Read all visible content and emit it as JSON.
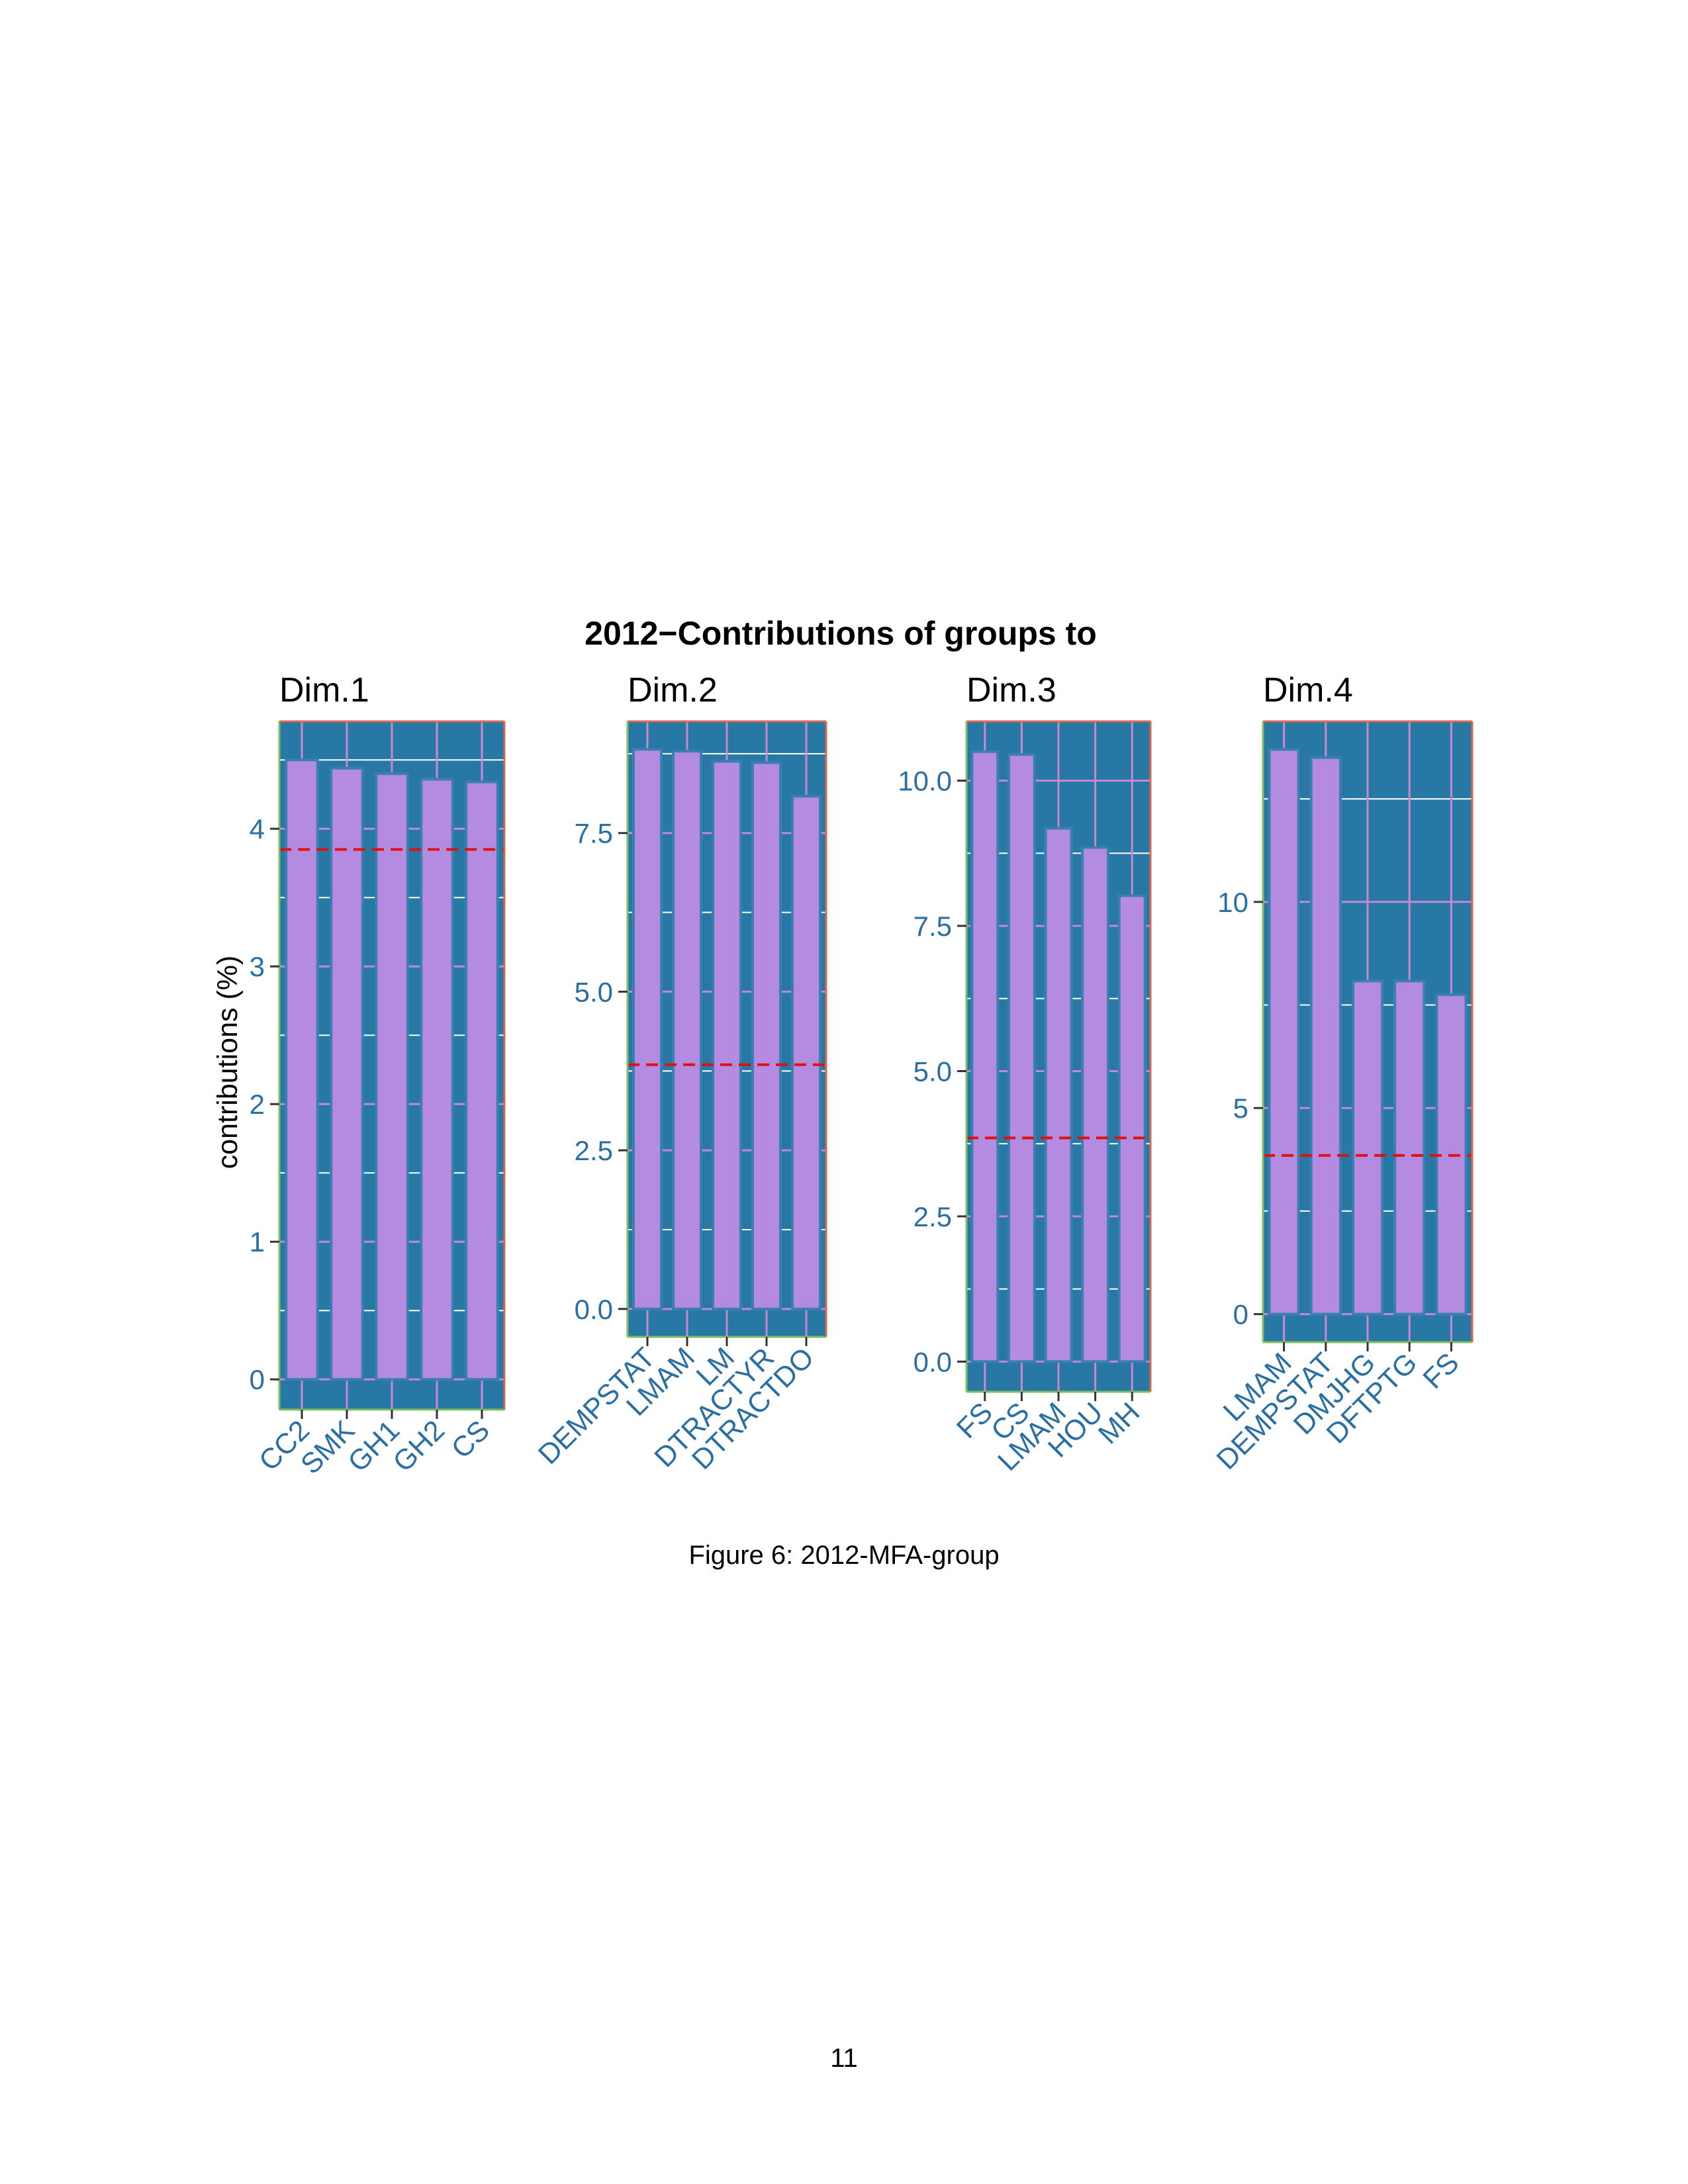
{
  "figure": {
    "title": "2012−Contributions of groups to",
    "ylabel": "contributions (%)",
    "caption": "Figure 6: 2012-MFA-group",
    "page_number": "11"
  },
  "colors": {
    "panel_background": "#2878a6",
    "bar_fill": "#b48be0",
    "bar_stroke": "#3a7fb0",
    "grid_major": "#c889d0",
    "grid_minor": "#ffffff",
    "panel_border_left": "#7fbf5f",
    "panel_border_top": "#d96a4a",
    "reference_line": "#e01010",
    "tick_label": "#2a6fa4",
    "category_label": "#2a6fa4"
  },
  "chart_data": [
    {
      "type": "bar",
      "panel_title": "Dim.1",
      "categories": [
        "CC2",
        "SMK",
        "GH1",
        "GH2",
        "CS"
      ],
      "values": [
        4.5,
        4.44,
        4.4,
        4.36,
        4.34
      ],
      "reference_line": 3.85,
      "ylim": [
        -0.22,
        4.78
      ],
      "ticks": [
        0,
        1,
        2,
        3,
        4
      ],
      "tick_labels": [
        "0",
        "1",
        "2",
        "3",
        "4"
      ],
      "minor_step": 0.5
    },
    {
      "type": "bar",
      "panel_title": "Dim.2",
      "categories": [
        "DEMPSTAT",
        "LMAM",
        "LM",
        "DTRACTYR",
        "DTRACTDO"
      ],
      "values": [
        8.82,
        8.79,
        8.63,
        8.61,
        8.08
      ],
      "reference_line": 3.85,
      "ylim": [
        -0.44,
        9.26
      ],
      "ticks": [
        0,
        2.5,
        5,
        7.5
      ],
      "tick_labels": [
        "0.0",
        "2.5",
        "5.0",
        "7.5"
      ],
      "minor_step": 1.25
    },
    {
      "type": "bar",
      "panel_title": "Dim.3",
      "categories": [
        "FS",
        "CS",
        "LMAM",
        "HOU",
        "MH"
      ],
      "values": [
        10.5,
        10.45,
        9.18,
        8.85,
        8.02
      ],
      "reference_line": 3.85,
      "ylim": [
        -0.52,
        11.02
      ],
      "ticks": [
        0,
        2.5,
        5,
        7.5,
        10
      ],
      "tick_labels": [
        "0.0",
        "2.5",
        "5.0",
        "7.5",
        "10.0"
      ],
      "minor_step": 1.25
    },
    {
      "type": "bar",
      "panel_title": "Dim.4",
      "categories": [
        "LMAM",
        "DEMPSTAT",
        "DMJHG",
        "DFTPTG",
        "FS"
      ],
      "values": [
        13.7,
        13.5,
        8.08,
        8.08,
        7.75
      ],
      "reference_line": 3.85,
      "ylim": [
        -0.68,
        14.38
      ],
      "ticks": [
        0,
        5,
        10
      ],
      "tick_labels": [
        "0",
        "5",
        "10"
      ],
      "minor_step": 2.5
    }
  ]
}
